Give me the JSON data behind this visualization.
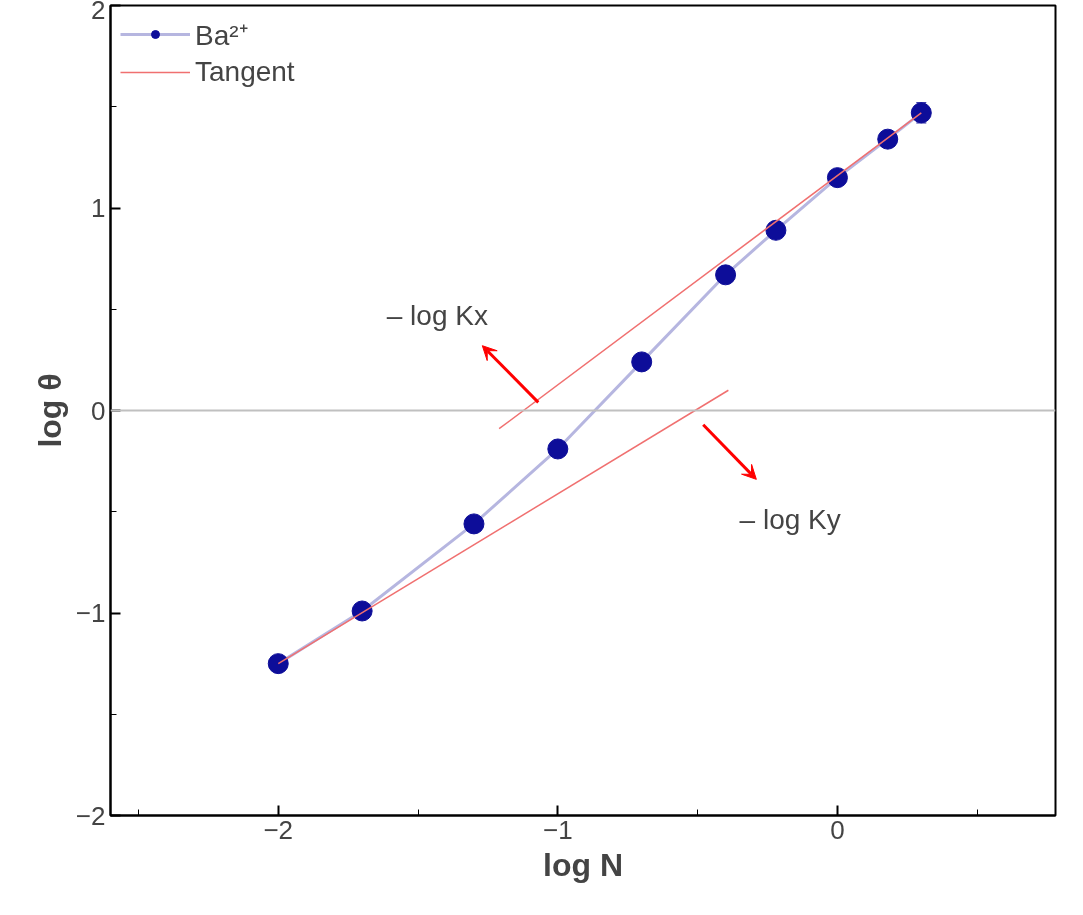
{
  "chart_data": {
    "type": "line",
    "xlabel": "log N",
    "ylabel": "log θ",
    "xlim": [
      -2.6,
      0.78
    ],
    "ylim": [
      -2,
      2
    ],
    "xticks": [
      -2,
      -1,
      0
    ],
    "yticks": [
      -2,
      -1,
      0,
      1,
      2
    ],
    "grid": false,
    "legend": "top left",
    "marker": "circle",
    "series": [
      {
        "name": "Ba²⁺",
        "color": "#0d0d99",
        "x": [
          -2,
          -1.7,
          -1.3,
          -1,
          -0.7,
          -0.4,
          -0.22,
          0,
          0.18,
          0.3
        ],
        "values": [
          -1.25,
          -0.99,
          -0.56,
          -0.19,
          0.24,
          0.67,
          0.89,
          1.15,
          1.34,
          1.47
        ],
        "errors": [
          null,
          null,
          null,
          null,
          null,
          null,
          null,
          null,
          0.04,
          0.05
        ]
      },
      {
        "name": "Tangent",
        "marker": "none",
        "color": "#f07070",
        "x": [
          -1.21,
          0.3
        ],
        "values": [
          -0.09,
          1.47
        ]
      },
      {
        "marker": "none",
        "color": "#f07070",
        "x": [
          -2,
          -0.39
        ],
        "values": [
          -1.25,
          0.1
        ]
      }
    ],
    "ref_lines": [
      {
        "axis": "y",
        "value": 0,
        "color": "#c0c0c0"
      }
    ],
    "annotations": [
      "– log Kx",
      "– log Ky"
    ]
  }
}
